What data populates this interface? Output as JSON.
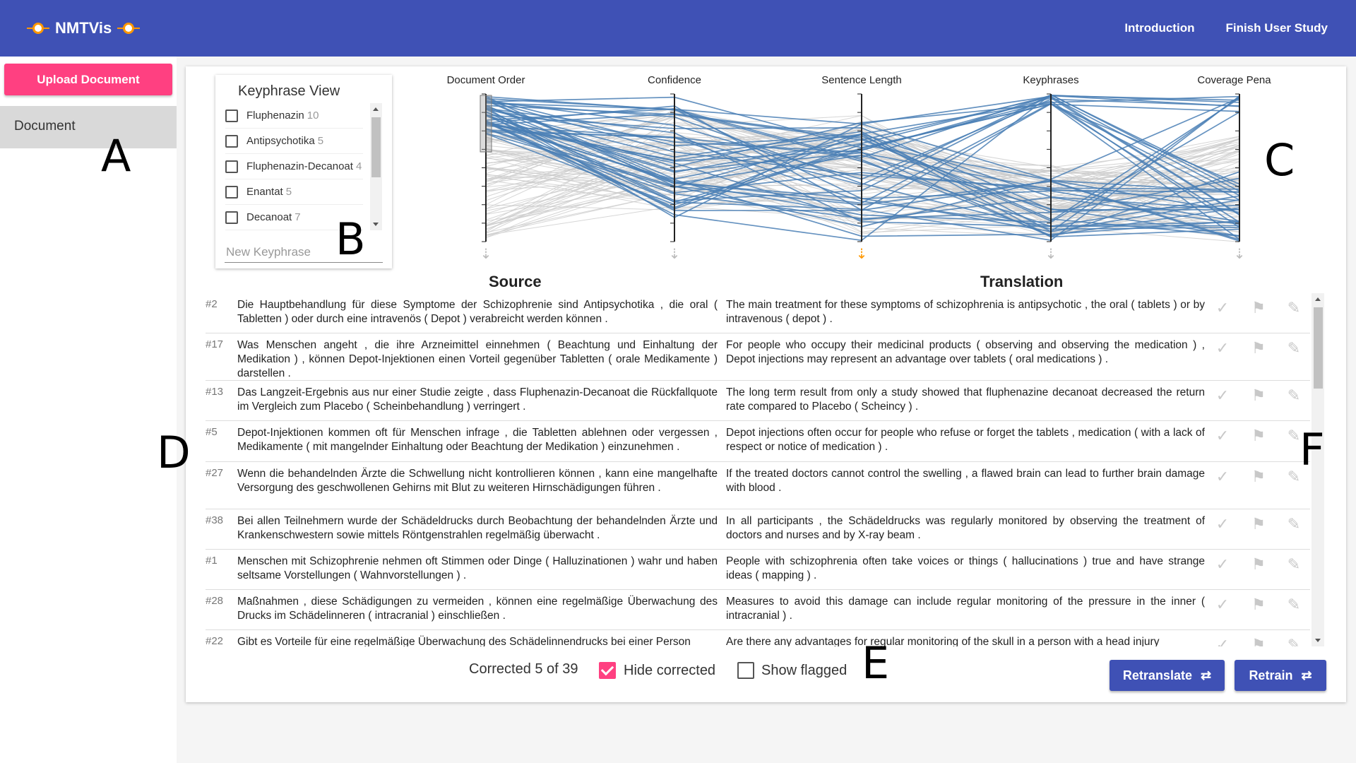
{
  "app": {
    "title": "NMTVis"
  },
  "nav": {
    "introduction": "Introduction",
    "finish": "Finish User Study"
  },
  "sidebar": {
    "upload_label": "Upload Document",
    "document_label": "Document"
  },
  "markers": {
    "a": "A",
    "b": "B",
    "c": "C",
    "d": "D",
    "e": "E",
    "f": "F"
  },
  "keyphrase_view": {
    "title": "Keyphrase View",
    "items": [
      {
        "label": "Fluphenazin",
        "count": "10"
      },
      {
        "label": "Antipsychotika",
        "count": "5"
      },
      {
        "label": "Fluphenazin-Decanoat",
        "count": "4"
      },
      {
        "label": "Enantat",
        "count": "5"
      },
      {
        "label": "Decanoat",
        "count": "7"
      }
    ],
    "placeholder": "New Keyphrase"
  },
  "chart_data": {
    "type": "parallel-coordinates",
    "axes": [
      "Document Order",
      "Confidence",
      "Sentence Length",
      "Keyphrases",
      "Coverage Penalty"
    ],
    "active_sort_axis": "Sentence Length",
    "highlight_color": "#4a7fb5",
    "context_color": "#cccccc",
    "sort_active_color": "#ff9800"
  },
  "table": {
    "source_header": "Source",
    "translation_header": "Translation",
    "rows": [
      {
        "id": "#2",
        "source": "Die Hauptbehandlung für diese Symptome der Schizophrenie sind Antipsychotika , die oral ( Tabletten ) oder durch eine intravenös ( Depot ) verabreicht werden können .",
        "translation": "The main treatment for these symptoms of schizophrenia is antipsychotic , the oral ( tablets ) or by intravenous ( depot ) ."
      },
      {
        "id": "#17",
        "source": "Was Menschen angeht , die ihre Arzneimittel einnehmen ( Beachtung und Einhaltung der Medikation ) , können Depot-Injektionen einen Vorteil gegenüber Tabletten ( orale Medikamente ) darstellen .",
        "translation": "For people who occupy their medicinal products ( observing and observing the medication ) , Depot injections may represent an advantage over tablets ( oral medications ) ."
      },
      {
        "id": "#13",
        "source": "Das Langzeit-Ergebnis aus nur einer Studie zeigte , dass Fluphenazin-Decanoat die Rückfallquote im Vergleich zum Placebo ( Scheinbehandlung ) verringert .",
        "translation": "The long term result from only a study showed that fluphenazine decanoat decreased the return rate compared to Placebo ( Scheincy ) ."
      },
      {
        "id": "#5",
        "source": "Depot-Injektionen kommen oft für Menschen infrage , die Tabletten ablehnen oder vergessen , Medikamente ( mit mangelnder Einhaltung oder Beachtung der Medikation ) einzunehmen .",
        "translation": "Depot injections often occur for people who refuse or forget the tablets , medication ( with a lack of respect or notice of medication ) ."
      },
      {
        "id": "#27",
        "source": "Wenn die behandelnden Ärzte die Schwellung nicht kontrollieren können , kann eine mangelhafte Versorgung des geschwollenen Gehirns mit Blut zu weiteren Hirnschädigungen führen .",
        "translation": "If the treated doctors cannot control the swelling , a flawed brain can lead to further brain damage with blood ."
      },
      {
        "id": "#38",
        "source": "Bei allen Teilnehmern wurde der Schädeldrucks durch Beobachtung der behandelnden Ärzte und Krankenschwestern sowie mittels Röntgenstrahlen regelmäßig überwacht .",
        "translation": "In all participants , the Schädeldrucks was regularly monitored by observing the treatment of doctors and nurses and by X-ray beam ."
      },
      {
        "id": "#1",
        "source": "Menschen mit Schizophrenie nehmen oft Stimmen oder Dinge ( Halluzinationen ) wahr und haben seltsame Vorstellungen ( Wahnvorstellungen ) .",
        "translation": "People with schizophrenia often take voices or things ( hallucinations ) true and have strange ideas ( mapping ) ."
      },
      {
        "id": "#28",
        "source": "Maßnahmen , diese Schädigungen zu vermeiden , können eine regelmäßige Überwachung des Drucks im Schädelinneren ( intracranial ) einschließen .",
        "translation": "Measures to avoid this damage can include regular monitoring of the pressure in the inner ( intracranial ) ."
      },
      {
        "id": "#22",
        "source": "Gibt es Vorteile für eine regelmäßige Überwachung des Schädelinnendrucks bei einer Person",
        "translation": "Are there any advantages for regular monitoring of the skull in a person with a head injury"
      }
    ]
  },
  "footer": {
    "corrected_text": "Corrected 5 of 39",
    "hide_corrected_label": "Hide corrected",
    "show_flagged_label": "Show flagged",
    "retranslate_label": "Retranslate",
    "retrain_label": "Retrain"
  }
}
